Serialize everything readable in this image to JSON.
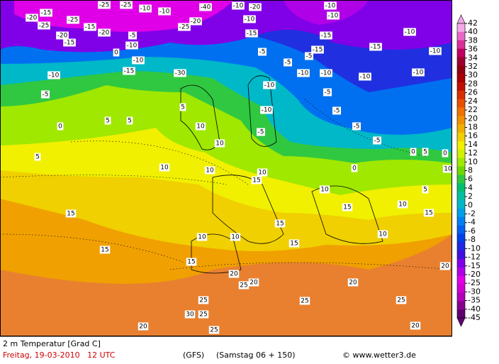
{
  "map": {
    "contour_labels": [
      -15,
      -25,
      -25,
      -25,
      -20,
      -25,
      -20,
      -15,
      -15,
      -20,
      -10,
      -10,
      -20,
      -40,
      -10,
      -20,
      -10,
      -25,
      -5,
      -10,
      0,
      -10,
      -15,
      -30,
      -10,
      -5,
      -5,
      -15,
      -10,
      -10,
      -15,
      -15,
      -5,
      -5,
      -10,
      -10,
      -10,
      -10,
      -10,
      -5,
      -5,
      -15,
      -10,
      -10,
      -10,
      -5,
      -5,
      5,
      0,
      5,
      5,
      5,
      10,
      10,
      10,
      10,
      -5,
      10,
      10,
      0,
      0,
      5,
      0,
      10,
      15,
      15,
      15,
      15,
      15,
      10,
      15,
      15,
      20,
      20,
      25,
      25,
      30,
      25,
      25,
      20,
      25,
      20,
      25,
      20,
      20,
      10,
      10,
      15,
      5,
      10
    ]
  },
  "legend": {
    "levels": [
      42,
      40,
      38,
      36,
      34,
      32,
      30,
      28,
      26,
      24,
      22,
      20,
      18,
      16,
      14,
      12,
      10,
      8,
      6,
      4,
      2,
      0,
      -2,
      -4,
      -6,
      -8,
      -10,
      -12,
      -15,
      -20,
      -25,
      -30,
      -35,
      -40,
      -45
    ],
    "colors": [
      "#f4a8e8",
      "#e868c8",
      "#d83098",
      "#c00060",
      "#a00030",
      "#900010",
      "#a80000",
      "#c01000",
      "#d83000",
      "#e85000",
      "#f07000",
      "#f09000",
      "#f0b000",
      "#f0d000",
      "#f0f000",
      "#d0f000",
      "#a0e800",
      "#70d800",
      "#30c840",
      "#00c070",
      "#00c0a0",
      "#00b8c8",
      "#00a0e8",
      "#0080f0",
      "#0060f0",
      "#0040e8",
      "#2028e0",
      "#4010e0",
      "#8000e8",
      "#b000e8",
      "#e000e8",
      "#d000d0",
      "#b000b8",
      "#880090",
      "#600070"
    ]
  },
  "footer": {
    "variable": "2 m Temperatur [Grad C]",
    "date": "Freitag, 19-03-2010   12 UTC",
    "model": "(GFS)",
    "run": "(Samstag 06 + 150)",
    "credit": "© www.wetter3.de"
  }
}
